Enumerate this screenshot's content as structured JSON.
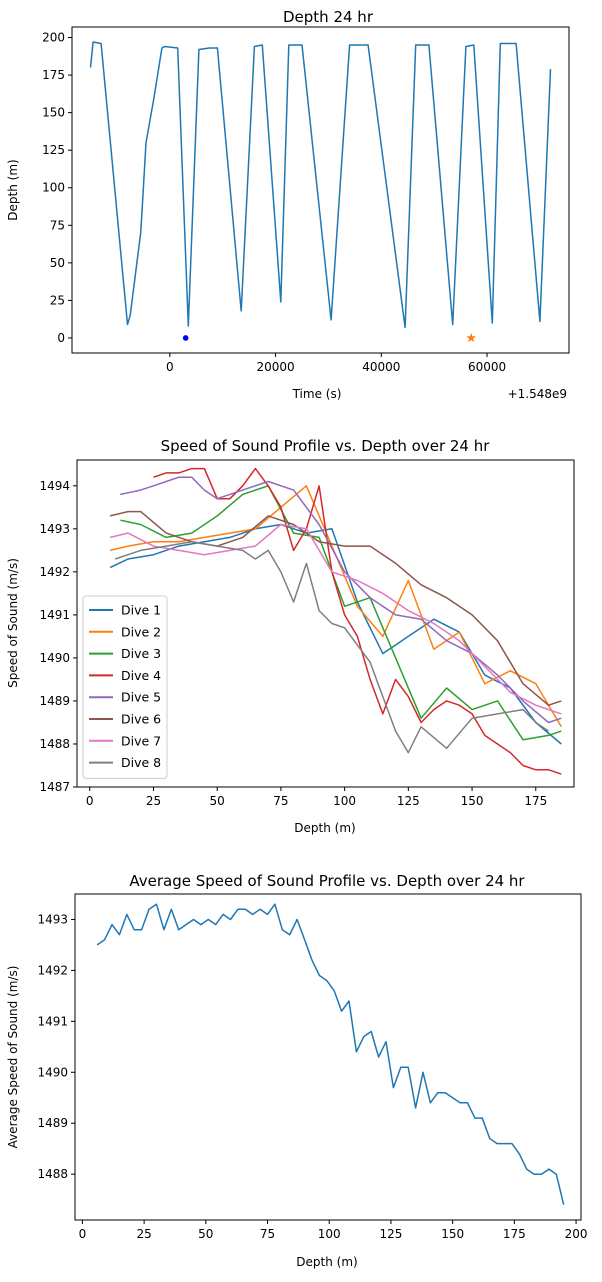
{
  "chart_data": [
    {
      "type": "line",
      "title": "Depth 24 hr",
      "xlabel": "Time (s)",
      "ylabel": "Depth (m)",
      "x_offset_label": "+1.548e9",
      "xlim": [
        -18500,
        75500
      ],
      "ylim": [
        -10,
        207
      ],
      "xticks": [
        0,
        20000,
        40000,
        60000
      ],
      "yticks": [
        0,
        25,
        50,
        75,
        100,
        125,
        150,
        175,
        200
      ],
      "grid": false,
      "color": "#1f77b4",
      "x": [
        -15000,
        -14500,
        -13000,
        -8000,
        -7500,
        -5500,
        -5000,
        -4500,
        -3000,
        -1500,
        -1000,
        1500,
        3500,
        5500,
        7500,
        9000,
        13500,
        16000,
        17500,
        21000,
        22500,
        25000,
        30500,
        34000,
        37500,
        44500,
        46500,
        49000,
        53500,
        56000,
        57500,
        61000,
        62500,
        65500,
        70000,
        72000
      ],
      "y": [
        180,
        197,
        196,
        9,
        15,
        70,
        100,
        130,
        160,
        193,
        194,
        193,
        8,
        192,
        193,
        193,
        18,
        194,
        195,
        24,
        195,
        195,
        12,
        195,
        195,
        7,
        195,
        195,
        9,
        194,
        195,
        10,
        196,
        196,
        11,
        179
      ],
      "markers": [
        {
          "x": 3000,
          "y": 0,
          "shape": "circle",
          "color": "#0000ff"
        },
        {
          "x": 57000,
          "y": 0,
          "shape": "star",
          "color": "#ff7f0e"
        }
      ]
    },
    {
      "type": "line",
      "title": "Speed of Sound Profile vs. Depth over 24 hr",
      "xlabel": "Depth (m)",
      "ylabel": "Speed of Sound (m/s)",
      "xlim": [
        -5,
        190
      ],
      "ylim": [
        1487,
        1494.6
      ],
      "xticks": [
        0,
        25,
        50,
        75,
        100,
        125,
        150,
        175
      ],
      "yticks": [
        1487,
        1488,
        1489,
        1490,
        1491,
        1492,
        1493,
        1494
      ],
      "grid": false,
      "legend": "left-center",
      "series": [
        {
          "name": "Dive 1",
          "color": "#1f77b4",
          "x": [
            8,
            15,
            25,
            35,
            45,
            55,
            65,
            75,
            85,
            95,
            105,
            115,
            125,
            135,
            145,
            155,
            165,
            175,
            185
          ],
          "y": [
            1492.1,
            1492.3,
            1492.4,
            1492.6,
            1492.7,
            1492.8,
            1493.0,
            1493.1,
            1492.9,
            1493.0,
            1491.3,
            1490.1,
            1490.5,
            1490.9,
            1490.6,
            1489.6,
            1489.3,
            1488.5,
            1488.0
          ]
        },
        {
          "name": "Dive 2",
          "color": "#ff7f0e",
          "x": [
            8,
            15,
            25,
            35,
            45,
            55,
            65,
            75,
            85,
            95,
            105,
            115,
            125,
            135,
            145,
            155,
            165,
            175,
            185
          ],
          "y": [
            1492.5,
            1492.6,
            1492.7,
            1492.7,
            1492.8,
            1492.9,
            1493.0,
            1493.5,
            1494.0,
            1492.6,
            1491.2,
            1490.5,
            1491.8,
            1490.2,
            1490.6,
            1489.4,
            1489.7,
            1489.4,
            1488.4
          ]
        },
        {
          "name": "Dive 3",
          "color": "#2ca02c",
          "x": [
            12,
            20,
            30,
            40,
            50,
            60,
            70,
            80,
            90,
            100,
            110,
            120,
            130,
            140,
            150,
            160,
            170,
            180,
            185
          ],
          "y": [
            1493.2,
            1493.1,
            1492.8,
            1492.9,
            1493.3,
            1493.8,
            1494.0,
            1492.9,
            1492.8,
            1491.2,
            1491.4,
            1490.0,
            1488.6,
            1489.3,
            1488.8,
            1489.0,
            1488.1,
            1488.2,
            1488.3
          ]
        },
        {
          "name": "Dive 4",
          "color": "#d62728",
          "x": [
            25,
            30,
            35,
            40,
            45,
            50,
            55,
            60,
            65,
            70,
            75,
            80,
            85,
            90,
            95,
            100,
            105,
            110,
            115,
            120,
            125,
            130,
            135,
            140,
            145,
            150,
            155,
            160,
            165,
            170,
            175,
            180,
            185
          ],
          "y": [
            1494.2,
            1494.3,
            1494.3,
            1494.4,
            1494.4,
            1493.7,
            1493.7,
            1494.0,
            1494.4,
            1494.0,
            1493.5,
            1492.5,
            1493.0,
            1494.0,
            1492.0,
            1491.0,
            1490.5,
            1489.5,
            1488.7,
            1489.5,
            1489.1,
            1488.5,
            1488.8,
            1489.0,
            1488.9,
            1488.7,
            1488.2,
            1488.0,
            1487.8,
            1487.5,
            1487.4,
            1487.4,
            1487.3
          ]
        },
        {
          "name": "Dive 5",
          "color": "#9467bd",
          "x": [
            12,
            20,
            25,
            30,
            35,
            40,
            45,
            50,
            60,
            70,
            80,
            90,
            100,
            110,
            120,
            130,
            140,
            150,
            160,
            170,
            180,
            185
          ],
          "y": [
            1493.8,
            1493.9,
            1494.0,
            1494.1,
            1494.2,
            1494.2,
            1493.9,
            1493.7,
            1493.9,
            1494.1,
            1493.9,
            1493.1,
            1492.0,
            1491.4,
            1491.0,
            1490.9,
            1490.4,
            1490.1,
            1489.6,
            1489.0,
            1488.5,
            1488.6
          ]
        },
        {
          "name": "Dive 6",
          "color": "#8c564b",
          "x": [
            8,
            15,
            20,
            30,
            40,
            50,
            60,
            70,
            80,
            90,
            100,
            110,
            120,
            130,
            140,
            150,
            160,
            170,
            180,
            185
          ],
          "y": [
            1493.3,
            1493.4,
            1493.4,
            1492.9,
            1492.7,
            1492.6,
            1492.8,
            1493.3,
            1493.1,
            1492.7,
            1492.6,
            1492.6,
            1492.2,
            1491.7,
            1491.4,
            1491.0,
            1490.4,
            1489.4,
            1488.9,
            1489.0
          ]
        },
        {
          "name": "Dive 7",
          "color": "#e377c2",
          "x": [
            8,
            15,
            25,
            35,
            45,
            55,
            65,
            75,
            85,
            95,
            105,
            115,
            125,
            135,
            145,
            155,
            165,
            175,
            185
          ],
          "y": [
            1492.8,
            1492.9,
            1492.6,
            1492.5,
            1492.4,
            1492.5,
            1492.6,
            1493.1,
            1493.0,
            1492.0,
            1491.8,
            1491.5,
            1491.1,
            1490.8,
            1490.4,
            1489.8,
            1489.2,
            1488.9,
            1488.7
          ]
        },
        {
          "name": "Dive 8",
          "color": "#7f7f7f",
          "x": [
            10,
            20,
            30,
            40,
            50,
            60,
            65,
            70,
            75,
            80,
            85,
            90,
            95,
            100,
            110,
            120,
            125,
            130,
            140,
            150,
            160,
            170,
            175,
            180
          ],
          "y": [
            1492.3,
            1492.5,
            1492.6,
            1492.7,
            1492.6,
            1492.5,
            1492.3,
            1492.5,
            1492.0,
            1491.3,
            1492.2,
            1491.1,
            1490.8,
            1490.7,
            1489.9,
            1488.3,
            1487.8,
            1488.4,
            1487.9,
            1488.6,
            1488.7,
            1488.8,
            1488.5,
            1488.3
          ]
        }
      ]
    },
    {
      "type": "line",
      "title": "Average Speed of Sound Profile vs. Depth over 24 hr",
      "xlabel": "Depth (m)",
      "ylabel": "Average Speed of Sound (m/s)",
      "xlim": [
        -3,
        202
      ],
      "ylim": [
        1487.1,
        1493.5
      ],
      "xticks": [
        0,
        25,
        50,
        75,
        100,
        125,
        150,
        175,
        200
      ],
      "yticks": [
        1488,
        1489,
        1490,
        1491,
        1492,
        1493
      ],
      "grid": false,
      "color": "#1f77b4",
      "x": [
        6,
        9,
        12,
        15,
        18,
        21,
        24,
        27,
        30,
        33,
        36,
        39,
        42,
        45,
        48,
        51,
        54,
        57,
        60,
        63,
        66,
        69,
        72,
        75,
        78,
        81,
        84,
        87,
        90,
        93,
        96,
        99,
        102,
        105,
        108,
        111,
        114,
        117,
        120,
        123,
        126,
        129,
        132,
        135,
        138,
        141,
        144,
        147,
        150,
        153,
        156,
        159,
        162,
        165,
        168,
        171,
        174,
        177,
        180,
        183,
        186,
        189,
        192,
        195
      ],
      "y": [
        1492.5,
        1492.6,
        1492.9,
        1492.7,
        1493.1,
        1492.8,
        1492.8,
        1493.2,
        1493.3,
        1492.8,
        1493.2,
        1492.8,
        1492.9,
        1493.0,
        1492.9,
        1493.0,
        1492.9,
        1493.1,
        1493.0,
        1493.2,
        1493.2,
        1493.1,
        1493.2,
        1493.1,
        1493.3,
        1492.8,
        1492.7,
        1493.0,
        1492.6,
        1492.2,
        1491.9,
        1491.8,
        1491.6,
        1491.2,
        1491.4,
        1490.4,
        1490.7,
        1490.8,
        1490.3,
        1490.6,
        1489.7,
        1490.1,
        1490.1,
        1489.3,
        1490.0,
        1489.4,
        1489.6,
        1489.6,
        1489.5,
        1489.4,
        1489.4,
        1489.1,
        1489.1,
        1488.7,
        1488.6,
        1488.6,
        1488.6,
        1488.4,
        1488.1,
        1488.0,
        1488.0,
        1488.1,
        1488.0,
        1487.4
      ]
    }
  ]
}
